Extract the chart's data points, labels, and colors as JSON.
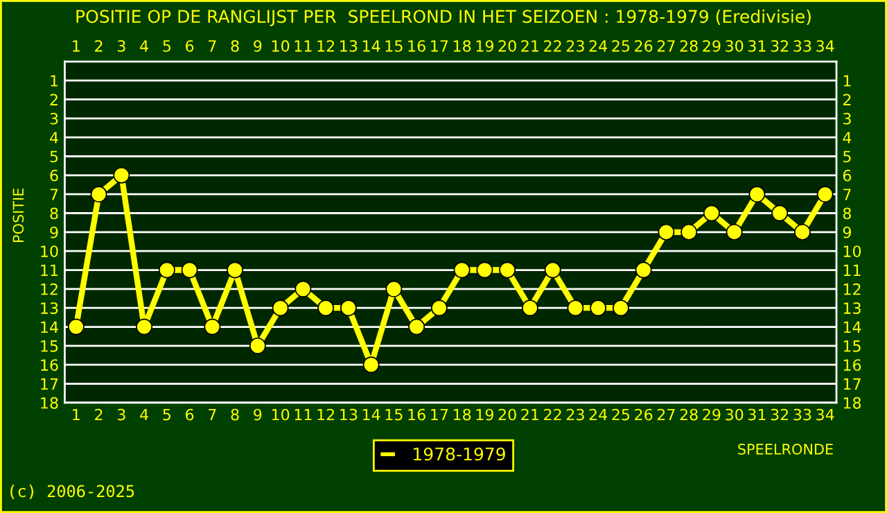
{
  "chart_data": {
    "type": "line",
    "title": "POSITIE OP DE RANGLIJST PER  SPEELROND IN HET SEIZOEN : 1978-1979 (Eredivisie)",
    "xlabel": "SPEELRONDE",
    "ylabel": "POSITIE",
    "annotations": [
      "(c) 2006-2025"
    ],
    "x": [
      1,
      2,
      3,
      4,
      5,
      6,
      7,
      8,
      9,
      10,
      11,
      12,
      13,
      14,
      15,
      16,
      17,
      18,
      19,
      20,
      21,
      22,
      23,
      24,
      25,
      26,
      27,
      28,
      29,
      30,
      31,
      32,
      33,
      34
    ],
    "series": [
      {
        "name": "1978-1979",
        "color": "#ffff00",
        "values": [
          14,
          7,
          6,
          14,
          11,
          11,
          14,
          11,
          15,
          13,
          12,
          13,
          13,
          16,
          12,
          14,
          13,
          11,
          11,
          11,
          13,
          11,
          13,
          13,
          13,
          11,
          9,
          9,
          8,
          9,
          7,
          8,
          9,
          7
        ]
      }
    ],
    "xlim": [
      0.5,
      34.5
    ],
    "xticks": [
      1,
      2,
      3,
      4,
      5,
      6,
      7,
      8,
      9,
      10,
      11,
      12,
      13,
      14,
      15,
      16,
      17,
      18,
      19,
      20,
      21,
      22,
      23,
      24,
      25,
      26,
      27,
      28,
      29,
      30,
      31,
      32,
      33,
      34
    ],
    "x2lim": [
      0.5,
      34.5
    ],
    "x2ticks": [
      1,
      2,
      3,
      4,
      5,
      6,
      7,
      8,
      9,
      10,
      11,
      12,
      13,
      14,
      15,
      16,
      17,
      18,
      19,
      20,
      21,
      22,
      23,
      24,
      25,
      26,
      27,
      28,
      29,
      30,
      31,
      32,
      33,
      34
    ],
    "ylim": [
      18,
      0
    ],
    "yticks": [
      1,
      2,
      3,
      4,
      5,
      6,
      7,
      8,
      9,
      10,
      11,
      12,
      13,
      14,
      15,
      16,
      17,
      18
    ],
    "y2lim": [
      18,
      0
    ],
    "y2ticks": [
      1,
      2,
      3,
      4,
      5,
      6,
      7,
      8,
      9,
      10,
      11,
      12,
      13,
      14,
      15,
      16,
      17,
      18
    ],
    "grid": "y",
    "legend": "bottom",
    "marker": "circle",
    "line_style": "solid"
  }
}
